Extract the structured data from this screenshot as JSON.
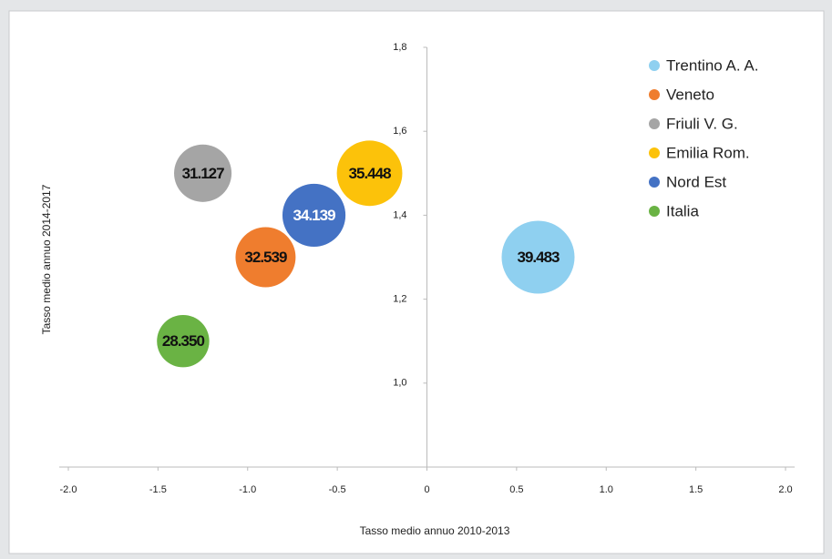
{
  "chart_data": {
    "type": "bubble",
    "xlabel": "Tasso medio annuo 2010-2013",
    "ylabel": "Tasso medio annuo 2014-2017",
    "xlim": [
      -2.0,
      2.0
    ],
    "xticks": [
      {
        "value": -2.0,
        "label": "-2.0"
      },
      -1.5,
      {
        "value": -1.0,
        "label": "-1.0"
      },
      -0.5,
      0,
      0.5,
      {
        "value": 1.0,
        "label": "1.0"
      },
      1.5,
      {
        "value": 2.0,
        "label": "2.0"
      }
    ],
    "ylim": [
      0.8,
      1.8
    ],
    "yticks": [
      {
        "value": 1.0,
        "label": "1,0"
      },
      {
        "value": 1.2,
        "label": "1,2"
      },
      {
        "value": 1.4,
        "label": "1,4"
      },
      {
        "value": 1.6,
        "label": "1,6"
      },
      {
        "value": 1.8,
        "label": "1,8"
      }
    ],
    "legend": "top right",
    "series": [
      {
        "name": "Trentino A. A.",
        "color": "#8fd0f0",
        "x": [
          0.62
        ],
        "values": [
          1.3
        ],
        "sizes": [
          39483
        ],
        "size_labels": [
          "39.483"
        ]
      },
      {
        "name": "Veneto",
        "color": "#ef7d2e",
        "x": [
          -0.9
        ],
        "values": [
          1.3
        ],
        "sizes": [
          32539
        ],
        "size_labels": [
          "32.539"
        ]
      },
      {
        "name": "Friuli V. G.",
        "color": "#a5a5a5",
        "x": [
          -1.25
        ],
        "values": [
          1.5
        ],
        "sizes": [
          31127
        ],
        "size_labels": [
          "31.127"
        ]
      },
      {
        "name": "Emilia Rom.",
        "color": "#fcc20a",
        "x": [
          -0.32
        ],
        "values": [
          1.5
        ],
        "sizes": [
          35448
        ],
        "size_labels": [
          "35.448"
        ]
      },
      {
        "name": "Nord Est",
        "color": "#4472c4",
        "x": [
          -0.63
        ],
        "values": [
          1.4
        ],
        "sizes": [
          34139
        ],
        "size_labels": [
          "34.139"
        ]
      },
      {
        "name": "Italia",
        "color": "#6ab344",
        "x": [
          -1.36
        ],
        "values": [
          1.1
        ],
        "sizes": [
          28350
        ],
        "size_labels": [
          "28.350"
        ]
      }
    ]
  }
}
